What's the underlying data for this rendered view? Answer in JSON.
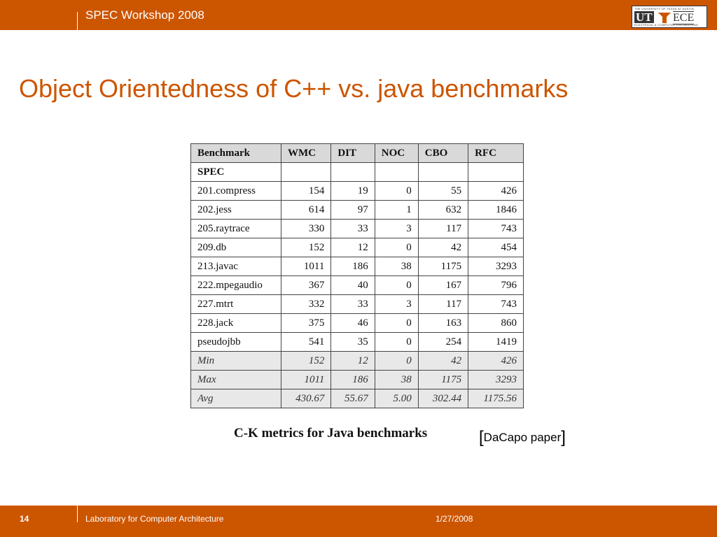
{
  "header": {
    "workshop": "SPEC Workshop 2008",
    "logo": {
      "top_line": "THE UNIVERSITY OF TEXAS AT AUSTIN",
      "ut": "UT",
      "ece": "ECE",
      "bottom_line": "ELECTRICAL & COMPUTER ENGINEERING"
    }
  },
  "title": "Object Orientedness of C++ vs. java benchmarks",
  "table": {
    "columns": [
      "Benchmark",
      "WMC",
      "DIT",
      "NOC",
      "CBO",
      "RFC"
    ],
    "section": "SPEC",
    "rows": [
      [
        "201.compress",
        "154",
        "19",
        "0",
        "55",
        "426"
      ],
      [
        "202.jess",
        "614",
        "97",
        "1",
        "632",
        "1846"
      ],
      [
        "205.raytrace",
        "330",
        "33",
        "3",
        "117",
        "743"
      ],
      [
        "209.db",
        "152",
        "12",
        "0",
        "42",
        "454"
      ],
      [
        "213.javac",
        "1011",
        "186",
        "38",
        "1175",
        "3293"
      ],
      [
        "222.mpegaudio",
        "367",
        "40",
        "0",
        "167",
        "796"
      ],
      [
        "227.mtrt",
        "332",
        "33",
        "3",
        "117",
        "743"
      ],
      [
        "228.jack",
        "375",
        "46",
        "0",
        "163",
        "860"
      ],
      [
        "pseudojbb",
        "541",
        "35",
        "0",
        "254",
        "1419"
      ]
    ],
    "stats": [
      [
        "Min",
        "152",
        "12",
        "0",
        "42",
        "426"
      ],
      [
        "Max",
        "1011",
        "186",
        "38",
        "1175",
        "3293"
      ],
      [
        "Avg",
        "430.67",
        "55.67",
        "5.00",
        "302.44",
        "1175.56"
      ]
    ]
  },
  "caption": "C-K metrics for Java benchmarks",
  "reference": {
    "open": "[",
    "text": "DaCapo paper",
    "close": "]"
  },
  "footer": {
    "page": "14",
    "lab": "Laboratory for Computer Architecture",
    "date": "1/27/2008"
  },
  "colors": {
    "accent": "#cc5500"
  }
}
